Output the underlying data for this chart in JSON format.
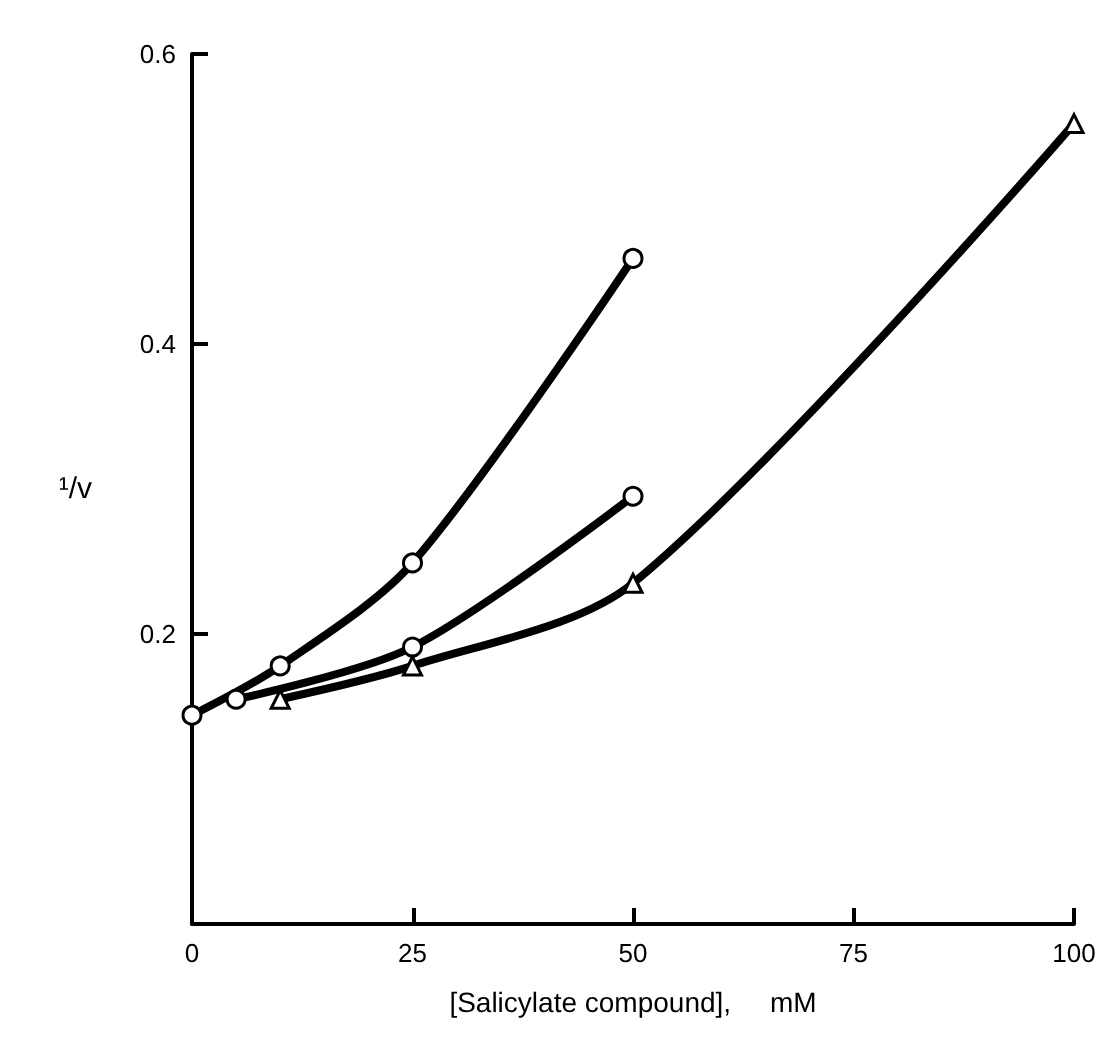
{
  "chart_data": {
    "type": "line",
    "xlabel": "[Salicylate compound],     mM",
    "ylabel": "¹/v",
    "xlim": [
      0,
      100
    ],
    "ylim": [
      0,
      0.6
    ],
    "xticks": [
      0,
      25,
      50,
      75,
      100
    ],
    "yticks": [
      0.2,
      0.4,
      0.6
    ],
    "grid": false,
    "series": [
      {
        "color": "#000000",
        "marker": "circle",
        "x": [
          0,
          10,
          25,
          50
        ],
        "values": [
          0.144,
          0.178,
          0.249,
          0.459
        ]
      },
      {
        "color": "#000000",
        "marker": "circle",
        "x": [
          5,
          25,
          50
        ],
        "values": [
          0.155,
          0.191,
          0.295
        ]
      },
      {
        "color": "#000000",
        "marker": "triangle",
        "x": [
          10,
          25,
          50,
          100
        ],
        "values": [
          0.155,
          0.178,
          0.235,
          0.552
        ]
      }
    ]
  }
}
